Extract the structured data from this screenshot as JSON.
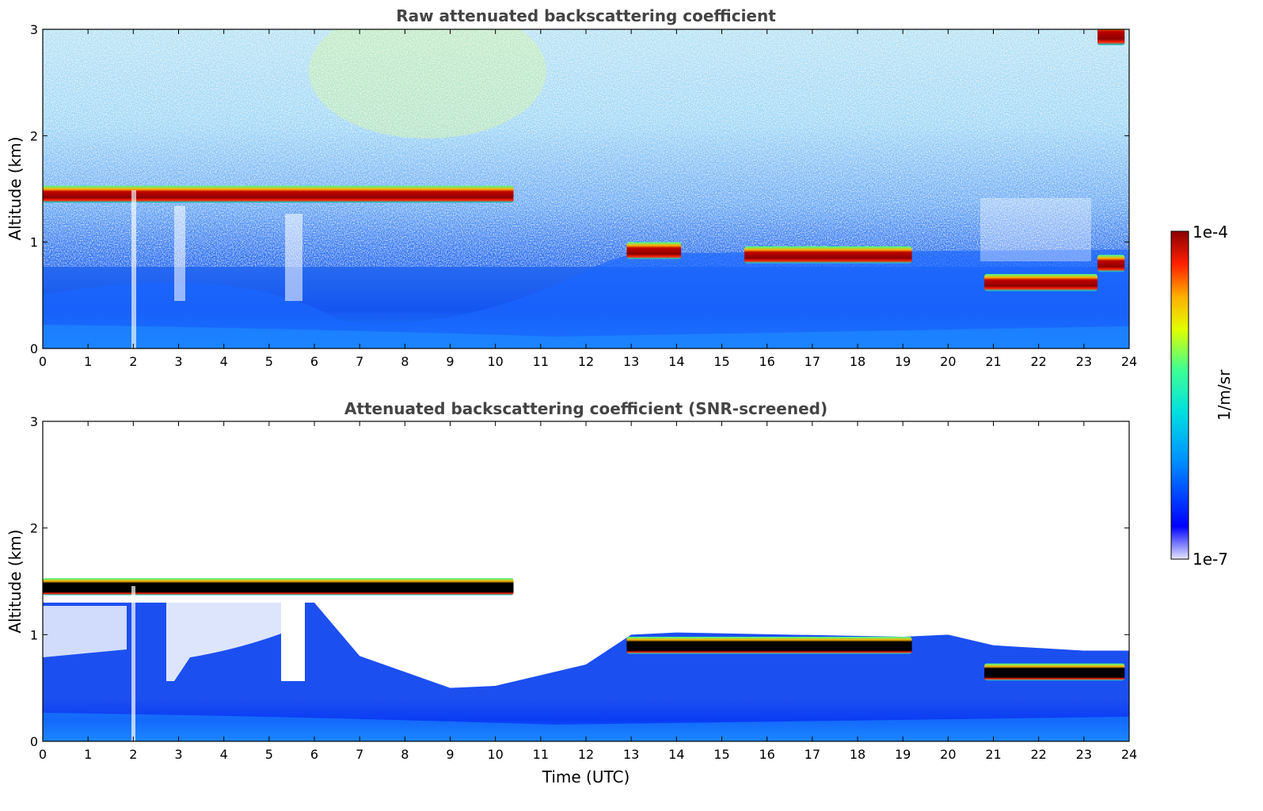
{
  "chart_data": [
    {
      "type": "heatmap",
      "title": "Raw attenuated backscattering coefficient",
      "xlabel": "",
      "ylabel": "Altitude (km)",
      "xlim": [
        0,
        24
      ],
      "ylim": [
        0,
        3
      ],
      "x_ticks": [
        "0",
        "1",
        "2",
        "3",
        "4",
        "5",
        "6",
        "7",
        "8",
        "9",
        "10",
        "11",
        "12",
        "13",
        "14",
        "15",
        "16",
        "17",
        "18",
        "19",
        "20",
        "21",
        "22",
        "23",
        "24"
      ],
      "y_ticks": [
        "0",
        "1",
        "2",
        "3"
      ],
      "features": [
        {
          "name": "cloud layer",
          "x": [
            0,
            10.4
          ],
          "altitude_km": 1.45
        },
        {
          "name": "cloud layer",
          "x": [
            12.9,
            14.1
          ],
          "altitude_km": 0.92
        },
        {
          "name": "cloud layer",
          "x": [
            15.5,
            19.2
          ],
          "altitude_km": 0.88
        },
        {
          "name": "cloud layer",
          "x": [
            20.8,
            23.3
          ],
          "altitude_km": 0.62
        },
        {
          "name": "cloud layer",
          "x": [
            23.3,
            23.9
          ],
          "altitude_km": 0.8
        },
        {
          "name": "high cloud",
          "x": [
            23.3,
            23.9
          ],
          "altitude_km": 2.95
        }
      ]
    },
    {
      "type": "heatmap",
      "title": "Attenuated backscattering coefficient (SNR-screened)",
      "xlabel": "Time (UTC)",
      "ylabel": "Altitude (km)",
      "xlim": [
        0,
        24
      ],
      "ylim": [
        0,
        3
      ],
      "x_ticks": [
        "0",
        "1",
        "2",
        "3",
        "4",
        "5",
        "6",
        "7",
        "8",
        "9",
        "10",
        "11",
        "12",
        "13",
        "14",
        "15",
        "16",
        "17",
        "18",
        "19",
        "20",
        "21",
        "22",
        "23",
        "24"
      ],
      "y_ticks": [
        "0",
        "1",
        "2",
        "3"
      ],
      "features": [
        {
          "name": "cloud layer",
          "x": [
            0,
            10.4
          ],
          "altitude_km": 1.45
        },
        {
          "name": "cloud layer",
          "x": [
            12.9,
            19.2
          ],
          "altitude_km": 0.9
        },
        {
          "name": "cloud layer",
          "x": [
            20.8,
            23.9
          ],
          "altitude_km": 0.65
        }
      ]
    }
  ],
  "colorbar": {
    "label": "1/m/sr",
    "max_label": "1e-4",
    "min_label": "1e-7",
    "colors": [
      "#e6e6ff",
      "#0000ff",
      "#0090ff",
      "#00e0e0",
      "#40ff90",
      "#e0ff00",
      "#ffb000",
      "#ff2000",
      "#8b0000"
    ]
  }
}
